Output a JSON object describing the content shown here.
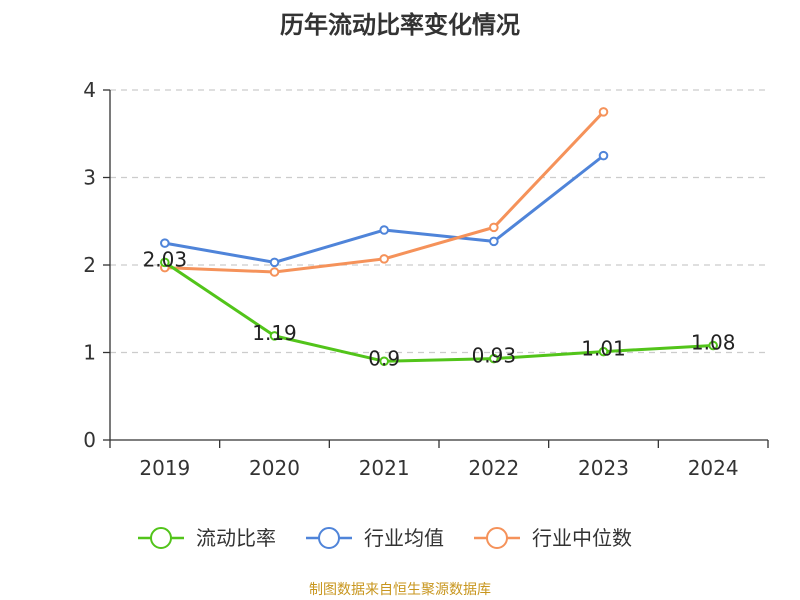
{
  "chart_data": {
    "type": "line",
    "title": "历年流动比率变化情况",
    "categories": [
      "2019",
      "2020",
      "2021",
      "2022",
      "2023",
      "2024"
    ],
    "ylim": [
      0,
      4
    ],
    "yticks": [
      "0",
      "1",
      "2",
      "3",
      "4"
    ],
    "grid": true,
    "legend_position": "bottom",
    "series": [
      {
        "name": "流动比率",
        "color": "#52c41a",
        "values": [
          2.03,
          1.19,
          0.9,
          0.93,
          1.01,
          1.08
        ],
        "labels": [
          "2.03",
          "1.19",
          "0.9",
          "0.93",
          "1.01",
          "1.08"
        ]
      },
      {
        "name": "行业均值",
        "color": "#4f84d9",
        "values": [
          2.25,
          2.03,
          2.4,
          2.27,
          3.25,
          null
        ]
      },
      {
        "name": "行业中位数",
        "color": "#f5925a",
        "values": [
          1.97,
          1.92,
          2.07,
          2.43,
          3.75,
          null
        ]
      }
    ],
    "source": "制图数据来自恒生聚源数据库"
  }
}
